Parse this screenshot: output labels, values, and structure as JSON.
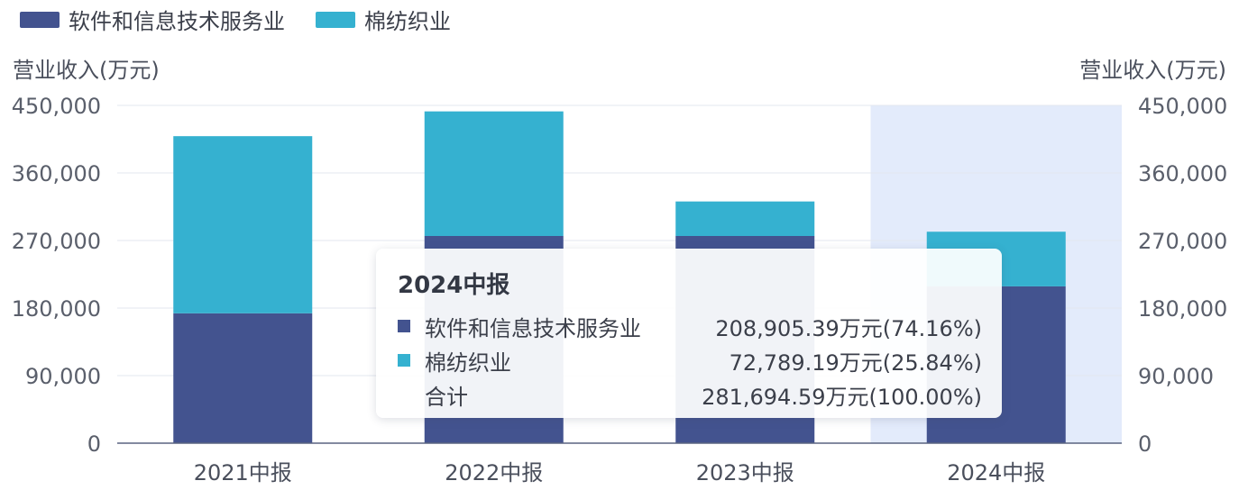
{
  "chart_data": {
    "type": "bar",
    "stacked": true,
    "categories": [
      "2021中报",
      "2022中报",
      "2023中报",
      "2024中报"
    ],
    "series": [
      {
        "name": "软件和信息技术服务业",
        "color": "#43538f",
        "values": [
          173000,
          276000,
          276000,
          208905.39
        ]
      },
      {
        "name": "棉纺织业",
        "color": "#35b1d0",
        "values": [
          236000,
          166000,
          46000,
          72789.19
        ]
      }
    ],
    "ylabel": "营业收入(万元)",
    "ylabel_right": "营业收入(万元)",
    "ylim": [
      0,
      450000
    ],
    "yticks": [
      "0",
      "90,000",
      "180,000",
      "270,000",
      "360,000",
      "450,000"
    ],
    "grid": true,
    "legend_position": "top-left",
    "highlighted_category": "2024中报",
    "highlight_color": "#e3ebfb"
  },
  "tooltip": {
    "title": "2024中报",
    "rows": [
      {
        "name": "软件和信息技术服务业",
        "value": "208,905.39万元(74.16%)",
        "color": "#43538f"
      },
      {
        "name": "棉纺织业",
        "value": "72,789.19万元(25.84%)",
        "color": "#35b1d0"
      },
      {
        "name": "合计",
        "value": "281,694.59万元(100.00%)",
        "color": ""
      }
    ]
  }
}
